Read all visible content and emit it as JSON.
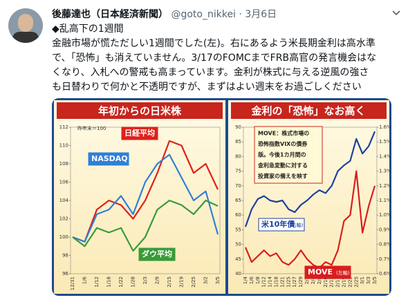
{
  "tweet": {
    "author": "後藤達也（日本経済新聞）",
    "handle": "@goto_nikkei",
    "separator": "·",
    "date": "3月6日",
    "lines": [
      "◆乱高下の1週間",
      "金融市場が慌ただしい1週間でした(左)。右にあるよう米長期金利は高水準",
      "で、「恐怖」も消えていません。3/17のFOMCまでFRB高官の発言機会はな",
      "くなり、入札への警戒も高まっています。金利が株式に与える逆風の強さ",
      "も日替わりで何かと不透明ですが、まずはよい週末をお過ごしください"
    ]
  },
  "chart_data": [
    {
      "type": "line",
      "title": "年初からの日米株",
      "note": "昨年末＝100",
      "categories": [
        "12/31",
        "1/6",
        "1/12",
        "1/18",
        "1/22",
        "1/28",
        "2/3",
        "2/9",
        "2/15",
        "2/19",
        "2/25",
        "3/2",
        "3/5"
      ],
      "series": [
        {
          "name": "日経平均",
          "color": "#e0201b",
          "values": [
            100,
            99.5,
            103,
            104,
            103.5,
            102,
            104,
            107,
            110.5,
            110,
            107,
            108,
            105.2
          ]
        },
        {
          "name": "NASDAQ",
          "color": "#2f7fd8",
          "values": [
            100,
            99.5,
            102.5,
            103,
            104.5,
            102.5,
            106,
            108,
            109,
            106.5,
            104,
            105,
            100.3
          ]
        },
        {
          "name": "ダウ平均",
          "color": "#3a9a3a",
          "values": [
            100,
            99,
            101,
            100.5,
            101,
            98.5,
            100,
            103,
            104,
            103.5,
            102.5,
            104,
            103.4
          ]
        }
      ],
      "ylim": [
        96,
        112
      ],
      "yticks": [
        96,
        98,
        100,
        102,
        104,
        106,
        108,
        110,
        112
      ]
    },
    {
      "type": "line",
      "title": "金利の「恐怖」なお高く",
      "note_lines": [
        "MOVE：株式市場の",
        "恐怖指数VIXの債券",
        "版。今後1カ月間の",
        "金利急変動に対する",
        "投資家の備えを映す"
      ],
      "categories": [
        "1/4",
        "1/6",
        "1/8",
        "1/12",
        "1/14",
        "1/18",
        "1/21",
        "1/25",
        "1/27",
        "1/29",
        "2/2",
        "2/4",
        "2/8",
        "2/10",
        "2/12",
        "2/17",
        "2/19",
        "2/23",
        "2/25",
        "3/1",
        "3/3",
        "3/5"
      ],
      "series": [
        {
          "name": "米10年債",
          "axis_note": "(右軸)",
          "axis": "y2",
          "color": "#1f3fa0",
          "values": [
            0.92,
            1.04,
            1.11,
            1.13,
            1.1,
            1.09,
            1.1,
            1.04,
            1.02,
            1.07,
            1.1,
            1.14,
            1.17,
            1.15,
            1.2,
            1.3,
            1.34,
            1.37,
            1.52,
            1.42,
            1.47,
            1.57
          ]
        },
        {
          "name": "MOVE",
          "axis_note": "(左軸)",
          "color": "#d81e1e",
          "values": [
            49,
            44,
            46,
            48,
            46,
            47,
            44,
            43,
            45,
            48,
            45,
            43,
            42,
            44,
            43,
            48,
            58,
            60,
            75,
            54,
            63,
            70
          ]
        }
      ],
      "ylim": [
        40,
        90
      ],
      "yticks": [
        40,
        45,
        50,
        55,
        60,
        65,
        70,
        75,
        80,
        85,
        90
      ],
      "y2lim": [
        0.6,
        1.6
      ],
      "y2ticks": [
        {
          "value": 0.6,
          "label": "0.6%"
        },
        {
          "value": 0.7,
          "label": "0.7%"
        },
        {
          "value": 0.8,
          "label": "0.8%"
        },
        {
          "value": 0.9,
          "label": "0.9%"
        },
        {
          "value": 1.0,
          "label": "1.0%"
        },
        {
          "value": 1.1,
          "label": "1.1%"
        },
        {
          "value": 1.2,
          "label": "1.2%"
        },
        {
          "value": 1.3,
          "label": "1.3%"
        },
        {
          "value": 1.4,
          "label": "1.4%"
        },
        {
          "value": 1.5,
          "label": "1.5%"
        },
        {
          "value": 1.6,
          "label": "1.6%"
        }
      ]
    }
  ]
}
